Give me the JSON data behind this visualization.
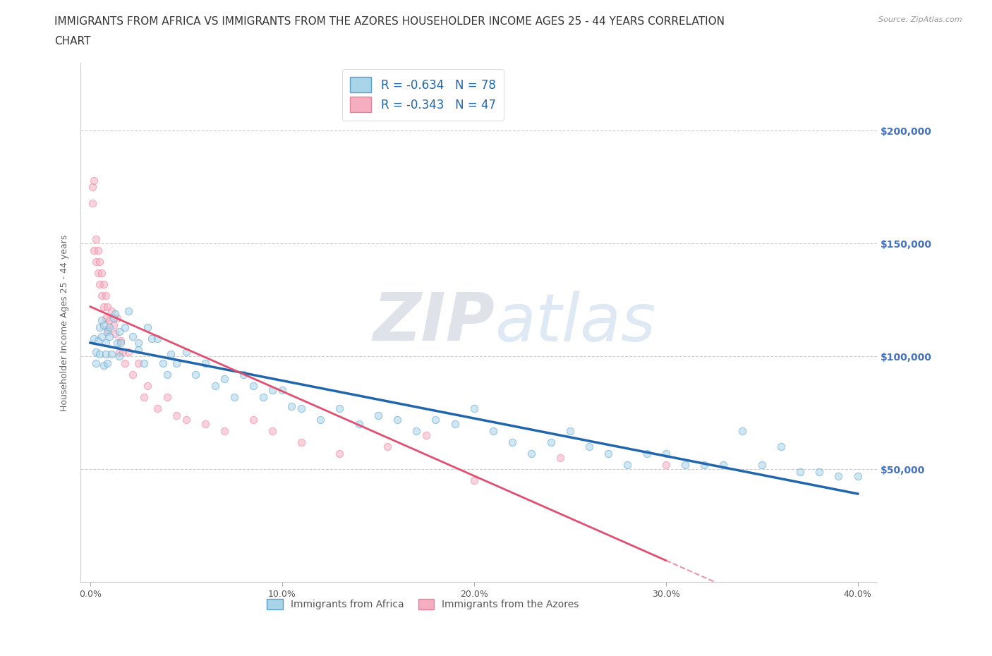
{
  "title_line1": "IMMIGRANTS FROM AFRICA VS IMMIGRANTS FROM THE AZORES HOUSEHOLDER INCOME AGES 25 - 44 YEARS CORRELATION",
  "title_line2": "CHART",
  "source_text": "Source: ZipAtlas.com",
  "ylabel": "Householder Income Ages 25 - 44 years",
  "xlabel_ticks": [
    "0.0%",
    "10.0%",
    "20.0%",
    "30.0%",
    "40.0%"
  ],
  "xlabel_tick_vals": [
    0.0,
    0.1,
    0.2,
    0.3,
    0.4
  ],
  "ytick_labels": [
    "$50,000",
    "$100,000",
    "$150,000",
    "$200,000"
  ],
  "ytick_vals": [
    50000,
    100000,
    150000,
    200000
  ],
  "xlim": [
    -0.005,
    0.41
  ],
  "ylim": [
    0,
    230000
  ],
  "watermark_zip": "ZIP",
  "watermark_atlas": "atlas",
  "africa_color": "#a8d4e8",
  "azores_color": "#f4aec0",
  "africa_edge_color": "#5b9dc9",
  "azores_edge_color": "#e8809a",
  "africa_line_color": "#2166ac",
  "azores_line_color": "#e05070",
  "legend_label1": "R = -0.634   N = 78",
  "legend_label2": "R = -0.343   N = 47",
  "legend_text_color": "#2166ac",
  "bottom_legend_label1": "Immigrants from Africa",
  "bottom_legend_label2": "Immigrants from the Azores",
  "background_color": "#ffffff",
  "grid_color": "#cccccc",
  "title_fontsize": 11,
  "axis_label_fontsize": 9,
  "tick_fontsize": 9,
  "scatter_size": 55,
  "scatter_alpha": 0.55,
  "scatter_linewidth": 0.8,
  "africa_scatter_x": [
    0.002,
    0.003,
    0.003,
    0.004,
    0.005,
    0.005,
    0.006,
    0.006,
    0.007,
    0.007,
    0.008,
    0.008,
    0.009,
    0.009,
    0.01,
    0.01,
    0.011,
    0.012,
    0.013,
    0.014,
    0.015,
    0.015,
    0.016,
    0.018,
    0.02,
    0.022,
    0.025,
    0.025,
    0.028,
    0.03,
    0.032,
    0.035,
    0.038,
    0.04,
    0.042,
    0.045,
    0.05,
    0.055,
    0.06,
    0.065,
    0.07,
    0.075,
    0.08,
    0.085,
    0.09,
    0.095,
    0.1,
    0.105,
    0.11,
    0.12,
    0.13,
    0.14,
    0.15,
    0.16,
    0.17,
    0.18,
    0.19,
    0.2,
    0.21,
    0.22,
    0.23,
    0.24,
    0.25,
    0.26,
    0.27,
    0.28,
    0.29,
    0.3,
    0.31,
    0.32,
    0.33,
    0.34,
    0.35,
    0.36,
    0.37,
    0.38,
    0.39,
    0.4
  ],
  "africa_scatter_y": [
    108000,
    102000,
    97000,
    107000,
    113000,
    101000,
    116000,
    109000,
    114000,
    96000,
    106000,
    101000,
    111000,
    97000,
    113000,
    109000,
    101000,
    117000,
    119000,
    106000,
    111000,
    100000,
    106000,
    113000,
    120000,
    109000,
    106000,
    103000,
    97000,
    113000,
    108000,
    108000,
    97000,
    92000,
    101000,
    97000,
    102000,
    92000,
    97000,
    87000,
    90000,
    82000,
    92000,
    87000,
    82000,
    85000,
    85000,
    78000,
    77000,
    72000,
    77000,
    70000,
    74000,
    72000,
    67000,
    72000,
    70000,
    77000,
    67000,
    62000,
    57000,
    62000,
    67000,
    60000,
    57000,
    52000,
    57000,
    57000,
    52000,
    52000,
    52000,
    67000,
    52000,
    60000,
    49000,
    49000,
    47000,
    47000
  ],
  "azores_scatter_x": [
    0.001,
    0.001,
    0.002,
    0.002,
    0.003,
    0.003,
    0.004,
    0.004,
    0.005,
    0.005,
    0.006,
    0.006,
    0.007,
    0.007,
    0.008,
    0.008,
    0.009,
    0.009,
    0.01,
    0.011,
    0.012,
    0.013,
    0.014,
    0.015,
    0.016,
    0.017,
    0.018,
    0.02,
    0.022,
    0.025,
    0.028,
    0.03,
    0.035,
    0.04,
    0.045,
    0.05,
    0.06,
    0.07,
    0.085,
    0.095,
    0.11,
    0.13,
    0.155,
    0.175,
    0.2,
    0.245,
    0.3
  ],
  "azores_scatter_y": [
    168000,
    175000,
    147000,
    178000,
    152000,
    142000,
    147000,
    137000,
    142000,
    132000,
    137000,
    127000,
    132000,
    122000,
    127000,
    117000,
    122000,
    112000,
    116000,
    120000,
    114000,
    110000,
    117000,
    102000,
    107000,
    102000,
    97000,
    102000,
    92000,
    97000,
    82000,
    87000,
    77000,
    82000,
    74000,
    72000,
    70000,
    67000,
    72000,
    67000,
    62000,
    57000,
    60000,
    65000,
    45000,
    55000,
    52000
  ]
}
